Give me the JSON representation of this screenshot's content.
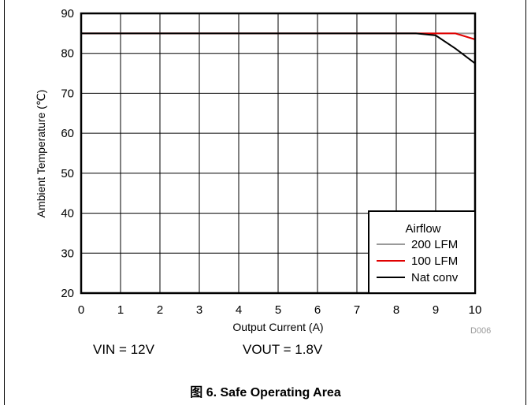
{
  "chart_data": {
    "type": "line",
    "xlabel": "Output Current (A)",
    "ylabel": "Ambient Temperature (℃)",
    "xlim": [
      0,
      10
    ],
    "ylim": [
      20,
      90
    ],
    "xticks": [
      "0",
      "1",
      "2",
      "3",
      "4",
      "5",
      "6",
      "7",
      "8",
      "9",
      "10"
    ],
    "yticks": [
      "20",
      "30",
      "40",
      "50",
      "60",
      "70",
      "80",
      "90"
    ],
    "grid": true,
    "legend": {
      "title": "Airflow",
      "position": "bottom-right"
    },
    "series": [
      {
        "name": "200 LFM",
        "color": "#9a9a9a",
        "x": [
          0,
          8.9,
          10
        ],
        "y": [
          85,
          85,
          85
        ]
      },
      {
        "name": "100 LFM",
        "color": "#e00000",
        "x": [
          0,
          9.0,
          9.5,
          10
        ],
        "y": [
          85,
          85,
          85,
          83.5
        ]
      },
      {
        "name": "Nat conv",
        "color": "#000000",
        "x": [
          0,
          8.5,
          9.0,
          9.5,
          10
        ],
        "y": [
          85,
          85,
          84.5,
          81.2,
          77.5
        ]
      }
    ]
  },
  "conditions": {
    "vin": "VIN = 12V",
    "vout": "VOUT = 1.8V"
  },
  "source_id": "D006",
  "caption": "图 6. Safe Operating Area"
}
